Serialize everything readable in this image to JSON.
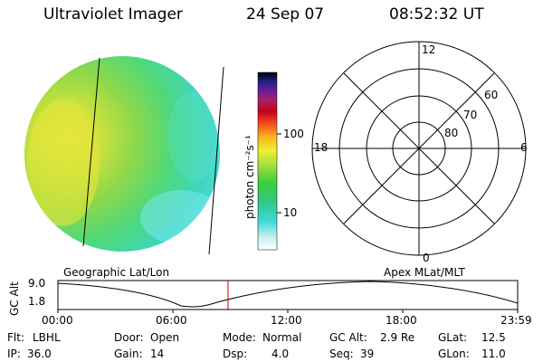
{
  "header": {
    "title": "Ultraviolet Imager",
    "date": "24 Sep 07",
    "time": "08:52:32 UT"
  },
  "colorbar": {
    "label": "photon cm⁻²s⁻¹",
    "ticks": [
      "100",
      "10"
    ]
  },
  "polar": {
    "mlt_labels": [
      "12",
      "18",
      "6",
      "0"
    ],
    "lat_labels": [
      "60",
      "70",
      "80"
    ]
  },
  "orbit": {
    "left_label": "Geographic Lat/Lon",
    "right_label": "Apex MLat/MLT",
    "y_axis_label": "GC Alt",
    "y_ticks": [
      "9.0",
      "1.8"
    ],
    "x_ticks": [
      "00:00",
      "06:00",
      "12:00",
      "18:00",
      "23:59"
    ],
    "current_time_fraction": 0.3701
  },
  "status": {
    "flt_label": "Flt:",
    "flt_value": "LBHL",
    "ip_label": "IP:",
    "ip_value": "36.0",
    "door_label": "Door:",
    "door_value": "Open",
    "gain_label": "Gain:",
    "gain_value": "14",
    "mode_label": "Mode:",
    "mode_value": "Normal",
    "dsp_label": "Dsp:",
    "dsp_value": "4.0",
    "gcalt_label": "GC Alt:",
    "gcalt_value": "2.9 Re",
    "seq_label": "Seq:",
    "seq_value": "39",
    "glat_label": "GLat:",
    "glat_value": "12.5",
    "glon_label": "GLon:",
    "glon_value": "11.0"
  }
}
